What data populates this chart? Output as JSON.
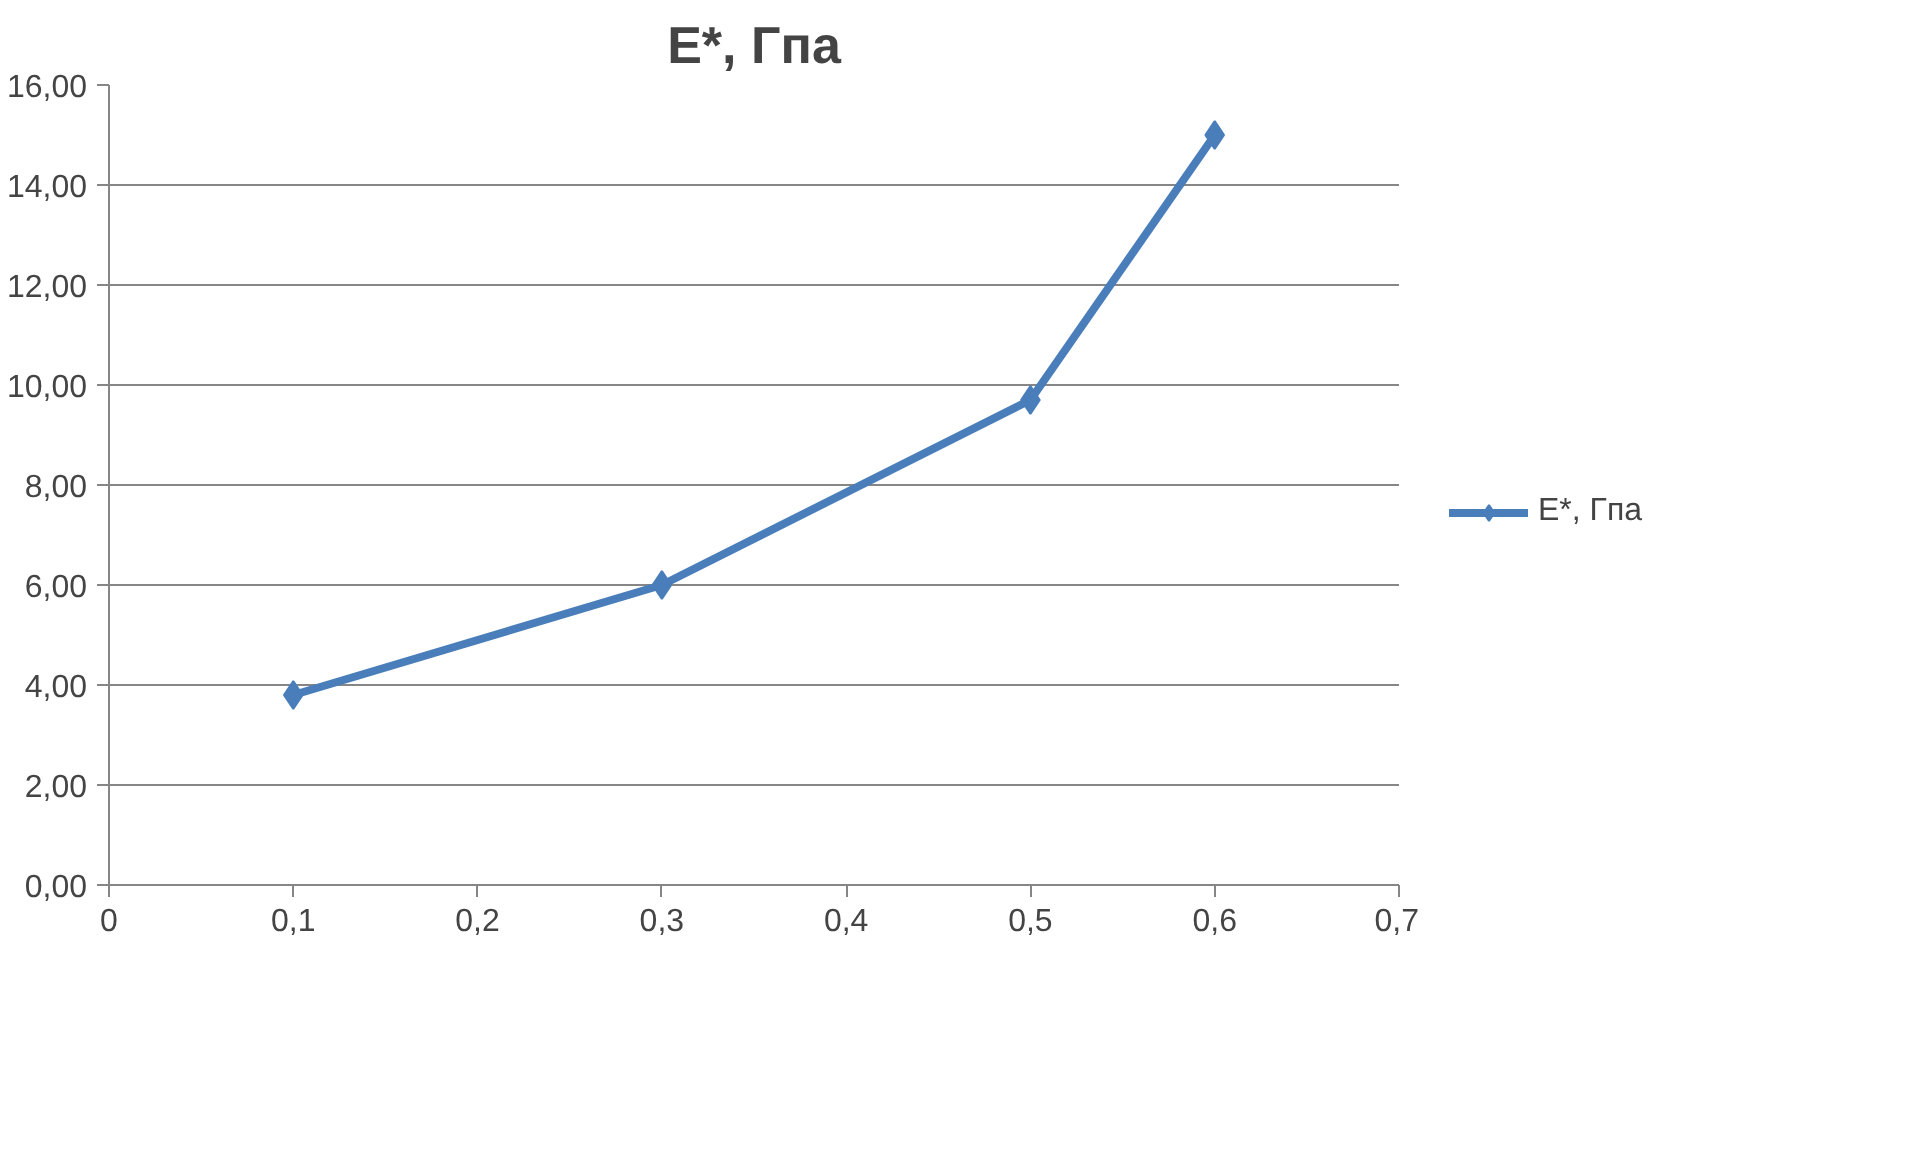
{
  "chart_data": {
    "type": "line",
    "title": "E*, Гпа",
    "x": [
      0.1,
      0.3,
      0.5,
      0.6
    ],
    "series": [
      {
        "name": "E*, Гпа",
        "color": "#4a7ebb",
        "values": [
          3.8,
          6.0,
          9.7,
          15.0
        ]
      }
    ],
    "xlim": [
      0,
      0.7
    ],
    "xticks": [
      0,
      {
        "value": 0.1,
        "label": "0,1"
      },
      {
        "value": 0.2,
        "label": "0,2"
      },
      {
        "value": 0.3,
        "label": "0,3"
      },
      {
        "value": 0.4,
        "label": "0,4"
      },
      {
        "value": 0.5,
        "label": "0,5"
      },
      {
        "value": 0.6,
        "label": "0,6"
      },
      {
        "value": 0.7,
        "label": "0,7"
      }
    ],
    "ylim": [
      0,
      16
    ],
    "yticks": [
      {
        "value": 0,
        "label": "0,00"
      },
      {
        "value": 2,
        "label": "2,00"
      },
      {
        "value": 4,
        "label": "4,00"
      },
      {
        "value": 6,
        "label": "6,00"
      },
      {
        "value": 8,
        "label": "8,00"
      },
      {
        "value": 10,
        "label": "10,00"
      },
      {
        "value": 12,
        "label": "12,00"
      },
      {
        "value": 14,
        "label": "14,00"
      },
      {
        "value": 16,
        "label": "16,00"
      }
    ],
    "grid": "y",
    "legend": "right",
    "marker": "diamond",
    "line_style": "solid"
  }
}
